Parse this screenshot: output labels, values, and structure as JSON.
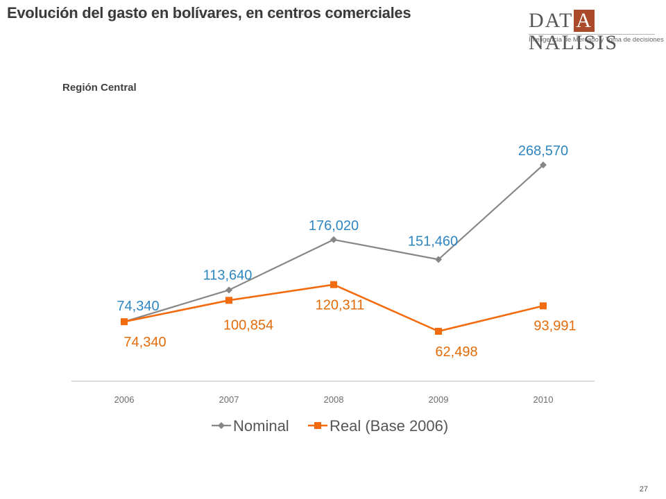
{
  "header": {
    "title": "Evolución del gasto en bolívares, en centros comerciales"
  },
  "logo": {
    "prefix": "DAT",
    "highlight": "A",
    "suffix": "NALISIS",
    "tagline": "Inteligencia de Mercado y Toma de decisiones",
    "accent_color": "#ab4a2b"
  },
  "subtitle": "Región Central",
  "page_number": "27",
  "chart_data": {
    "type": "line",
    "categories": [
      "2006",
      "2007",
      "2008",
      "2009",
      "2010"
    ],
    "series": [
      {
        "name": "Nominal",
        "values": [
          74340,
          113640,
          176020,
          151460,
          268570
        ],
        "labels": [
          "74,340",
          "113,640",
          "176,020",
          "151,460",
          "268,570"
        ],
        "line_color": "#868686",
        "label_color": "#2e86c1",
        "marker": "diamond"
      },
      {
        "name": "Real (Base 2006)",
        "values": [
          74340,
          100854,
          120311,
          62498,
          93991
        ],
        "labels": [
          "74,340",
          "100,854",
          "120,311",
          "62,498",
          "93,991"
        ],
        "line_color": "#f26b0f",
        "label_color": "#e36c09",
        "marker": "square"
      }
    ],
    "grid": false,
    "legend": "bottom"
  }
}
